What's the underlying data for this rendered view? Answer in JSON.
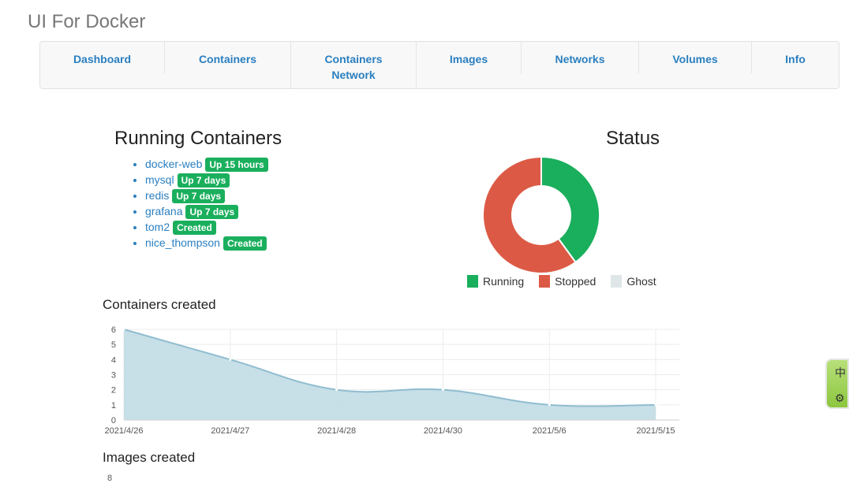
{
  "app": {
    "title": "UI For Docker"
  },
  "nav": {
    "items": [
      {
        "label": "Dashboard"
      },
      {
        "label": "Containers"
      },
      {
        "label": "Containers Network"
      },
      {
        "label": "Images"
      },
      {
        "label": "Networks"
      },
      {
        "label": "Volumes"
      },
      {
        "label": "Info"
      }
    ]
  },
  "running": {
    "title": "Running Containers",
    "items": [
      {
        "name": "docker-web",
        "status": "Up 15 hours"
      },
      {
        "name": "mysql",
        "status": "Up 7 days"
      },
      {
        "name": "redis",
        "status": "Up 7 days"
      },
      {
        "name": "grafana",
        "status": "Up 7 days"
      },
      {
        "name": "tom2",
        "status": "Created"
      },
      {
        "name": "nice_thompson",
        "status": "Created"
      }
    ]
  },
  "status": {
    "title": "Status",
    "legend": [
      {
        "label": "Running",
        "color": "#1aaf5d"
      },
      {
        "label": "Stopped",
        "color": "#dc5a45"
      },
      {
        "label": "Ghost",
        "color": "#dfe6e8"
      }
    ]
  },
  "chart_data": [
    {
      "type": "pie",
      "labels": [
        "Running",
        "Stopped",
        "Ghost"
      ],
      "values": [
        4,
        6,
        0
      ],
      "colors": [
        "#1aaf5d",
        "#dc5a45",
        "#dfe6e8"
      ],
      "donut": true,
      "legend": "bottom"
    },
    {
      "type": "area",
      "title": "Containers created",
      "x": [
        "2021/4/26",
        "2021/4/27",
        "2021/4/28",
        "2021/4/30",
        "2021/5/6",
        "2021/5/15"
      ],
      "values": [
        6,
        4,
        2,
        2,
        1,
        1
      ],
      "ylim": [
        0,
        6
      ],
      "yticks": [
        0,
        1,
        2,
        3,
        4,
        5,
        6
      ],
      "grid": true,
      "fill": "#c4dde6",
      "stroke": "#8fbdd0"
    }
  ],
  "images": {
    "title": "Images created",
    "first_tick": "8"
  },
  "widget": {
    "line1": "中",
    "line2": "⚙"
  }
}
